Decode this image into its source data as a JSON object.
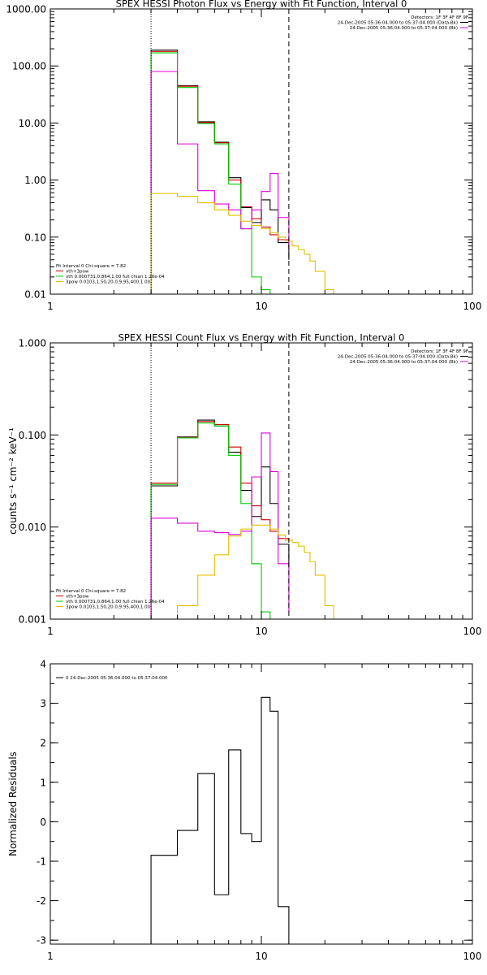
{
  "chart_data": [
    {
      "type": "line",
      "title": "SPEX HESSI Photon Flux vs Energy with Fit Function, Interval 0",
      "xlabel": "",
      "ylabel": "",
      "xscale": "log",
      "yscale": "log",
      "xlim": [
        1,
        100
      ],
      "ylim": [
        0.01,
        1000
      ],
      "xticks": [
        "1",
        "10",
        "100"
      ],
      "yticks": [
        {
          "v": 1000,
          "label": "1000.00"
        },
        {
          "v": 100,
          "label": "100.00"
        },
        {
          "v": 10,
          "label": "10.00"
        },
        {
          "v": 1,
          "label": "1.00"
        },
        {
          "v": 0.1,
          "label": "0.10"
        },
        {
          "v": 0.01,
          "label": "0.01"
        }
      ],
      "vlines": [
        {
          "x": 3,
          "style": "dotted"
        },
        {
          "x": 13.5,
          "style": "dashed"
        }
      ],
      "topright": [
        "Detectors: 1F 3F 4F 8F 9F",
        "24-Dec-2005 05:36:04.000 to 05:37:04.000 (Data-Bk)",
        "24-Dec-2005 05:36:04.000 to 05:37:04.000 (Bk)"
      ],
      "topright_colors": [
        "",
        "#000000",
        "#dd00dd"
      ],
      "legend": [
        "Fit Interval 0   Chi-square = 7.82",
        "vth+3pow",
        "vth 0.000731,0.864,1.00  full chian 1.26e-04",
        "3pow 0.0103,1.50,20.0,9.95,400,1.00"
      ],
      "legend_colors": [
        "",
        "#d00000",
        "#00cc00",
        "#e0c000"
      ],
      "series": [
        {
          "color": "#000000",
          "edges": [
            3,
            4,
            5,
            6,
            7,
            8,
            9,
            10,
            11,
            12,
            13.5
          ],
          "values": [
            190,
            45,
            10.5,
            4.6,
            1.1,
            0.33,
            0.18,
            0.45,
            0.3,
            0.08,
            0.04
          ]
        },
        {
          "color": "#d00000",
          "edges": [
            3,
            4,
            5,
            6,
            7,
            8,
            9,
            10,
            11,
            12,
            13.5
          ],
          "values": [
            180,
            44,
            10.2,
            4.5,
            1.0,
            0.34,
            0.21,
            0.15,
            0.11,
            0.09,
            0.07
          ]
        },
        {
          "color": "#00cc00",
          "edges": [
            3,
            4,
            5,
            6,
            7,
            8,
            9,
            10,
            11,
            12,
            13.5
          ],
          "values": [
            170,
            42,
            9.8,
            4.3,
            0.85,
            0.14,
            0.02,
            0.012,
            0.01,
            0.01,
            0.01
          ]
        },
        {
          "color": "#dd00dd",
          "edges": [
            3,
            4,
            5,
            6,
            7,
            8,
            9,
            10,
            11,
            12,
            13.5
          ],
          "values": [
            80,
            4.3,
            0.65,
            0.38,
            0.3,
            0.14,
            0.3,
            0.63,
            1.3,
            0.22,
            0.06
          ]
        },
        {
          "color": "#e0c000",
          "edges": [
            3,
            4,
            5,
            6,
            7,
            8,
            9,
            10,
            11,
            12,
            13,
            14,
            15,
            16,
            17,
            18,
            20,
            22
          ],
          "values": [
            0.58,
            0.52,
            0.4,
            0.3,
            0.24,
            0.19,
            0.16,
            0.14,
            0.12,
            0.1,
            0.085,
            0.07,
            0.06,
            0.05,
            0.038,
            0.025,
            0.012
          ]
        }
      ]
    },
    {
      "type": "line",
      "title": "SPEX HESSI Count Flux vs Energy with Fit Function, Interval 0",
      "xlabel": "",
      "ylabel": "counts s⁻¹ cm⁻² keV⁻¹",
      "xscale": "log",
      "yscale": "log",
      "xlim": [
        1,
        100
      ],
      "ylim": [
        0.001,
        1
      ],
      "xticks": [
        "1",
        "10",
        "100"
      ],
      "yticks": [
        {
          "v": 1,
          "label": "1.000"
        },
        {
          "v": 0.1,
          "label": "0.100"
        },
        {
          "v": 0.01,
          "label": "0.010"
        },
        {
          "v": 0.001,
          "label": "0.001"
        }
      ],
      "vlines": [
        {
          "x": 3,
          "style": "dotted"
        },
        {
          "x": 13.5,
          "style": "dashed"
        }
      ],
      "topright": [
        "Detectors: 1F 3F 4F 8F 9F",
        "24-Dec-2005 05:36:04.000 to 05:37:04.000 (Data-Bk)",
        "24-Dec-2005 05:36:04.000 to 05:37:04.000 (Bk)"
      ],
      "topright_colors": [
        "",
        "#000000",
        "#dd00dd"
      ],
      "legend": [
        "Fit Interval 0   Chi-square = 7.82",
        "vth+3pow",
        "vth 0.000731,0.864,1.00  full chian 1.26e-04",
        "3pow 0.0103,1.50,20.0,9.95,400,1.00"
      ],
      "legend_colors": [
        "",
        "#d00000",
        "#00cc00",
        "#e0c000"
      ],
      "series": [
        {
          "color": "#000000",
          "edges": [
            3,
            4,
            5,
            6,
            7,
            8,
            9,
            10,
            11,
            12,
            13.5
          ],
          "values": [
            0.028,
            0.095,
            0.145,
            0.125,
            0.065,
            0.025,
            0.013,
            0.045,
            0.018,
            0.0065,
            0.0036
          ]
        },
        {
          "color": "#d00000",
          "edges": [
            3,
            4,
            5,
            6,
            7,
            8,
            9,
            10,
            11,
            12,
            13.5
          ],
          "values": [
            0.03,
            0.094,
            0.14,
            0.13,
            0.074,
            0.03,
            0.017,
            0.012,
            0.009,
            0.0075,
            0.007
          ]
        },
        {
          "color": "#00cc00",
          "edges": [
            3,
            4,
            5,
            6,
            7,
            8,
            9,
            10,
            11,
            12,
            13.5
          ],
          "values": [
            0.029,
            0.093,
            0.135,
            0.125,
            0.06,
            0.018,
            0.004,
            0.0012,
            0.001,
            0.001,
            0.001
          ]
        },
        {
          "color": "#dd00dd",
          "edges": [
            3,
            4,
            5,
            6,
            7,
            8,
            9,
            10,
            11,
            12,
            13.5
          ],
          "values": [
            0.0125,
            0.011,
            0.009,
            0.0087,
            0.0083,
            0.009,
            0.035,
            0.105,
            0.04,
            0.004,
            0.0012
          ]
        },
        {
          "color": "#e0c000",
          "edges": [
            3,
            4,
            5,
            6,
            7,
            8,
            9,
            10,
            11,
            12,
            13,
            14,
            15,
            16,
            17,
            18,
            20,
            22
          ],
          "values": [
            0.001,
            0.0014,
            0.003,
            0.005,
            0.008,
            0.0095,
            0.0105,
            0.0105,
            0.0095,
            0.0082,
            0.0072,
            0.0068,
            0.0062,
            0.0053,
            0.0042,
            0.003,
            0.0014
          ]
        }
      ]
    },
    {
      "type": "line",
      "title": "",
      "xlabel": "",
      "ylabel": "Normalized Residuals",
      "xscale": "log",
      "yscale": "linear",
      "xlim": [
        1,
        100
      ],
      "ylim": [
        -3.1,
        4
      ],
      "xticks": [
        "1",
        "10",
        "100"
      ],
      "yticks": [
        {
          "v": 4,
          "label": "4"
        },
        {
          "v": 3,
          "label": "3"
        },
        {
          "v": 2,
          "label": "2"
        },
        {
          "v": 1,
          "label": "1"
        },
        {
          "v": 0,
          "label": "0"
        },
        {
          "v": -1,
          "label": "-1"
        },
        {
          "v": -2,
          "label": "-2"
        },
        {
          "v": -3,
          "label": "-3"
        }
      ],
      "legend": [
        "0  24-Dec-2005 05:36:04.000 to 05:37:04.000"
      ],
      "legend_colors": [
        "#000000"
      ],
      "series": [
        {
          "color": "#000000",
          "edges": [
            3,
            4,
            5,
            6,
            7,
            8,
            9,
            10,
            11,
            12,
            13.5
          ],
          "values": [
            -0.85,
            -0.22,
            1.22,
            -1.85,
            1.82,
            -0.3,
            -0.5,
            3.15,
            2.8,
            -2.15
          ]
        }
      ]
    }
  ]
}
